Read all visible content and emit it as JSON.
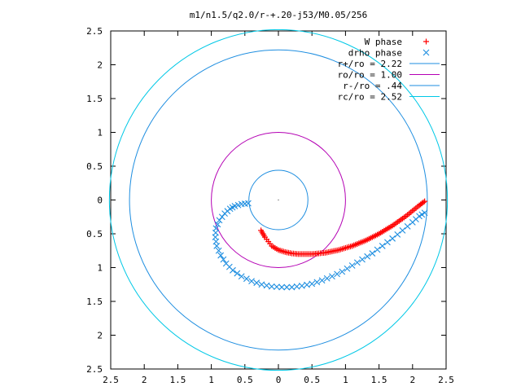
{
  "chart_data": {
    "type": "scatter",
    "title": "m1/n1.5/q2.0/r-+.20-j53/M0.05/256",
    "xlabel": "",
    "ylabel": "",
    "xlim": [
      -2.5,
      2.5
    ],
    "ylim": [
      -2.5,
      2.5
    ],
    "x_ticks": [
      "2.5",
      "2",
      "1.5",
      "1",
      "0.5",
      "0",
      "0.5",
      "1",
      "1.5",
      "2",
      "2.5"
    ],
    "y_ticks": [
      "2.5",
      "2",
      "1.5",
      "1",
      "0.5",
      "0",
      "0.5",
      "1",
      "1.5",
      "2",
      "2.5"
    ],
    "grid": false,
    "legend_position": "top-right",
    "series": [
      {
        "name": "W phase",
        "kind": "points",
        "marker": "plus",
        "color": "#ff0000",
        "points": [
          [
            -0.26,
            -0.45
          ],
          [
            -0.2,
            -0.55
          ],
          [
            -0.1,
            -0.68
          ],
          [
            0.0,
            -0.74
          ],
          [
            0.1,
            -0.77
          ],
          [
            0.2,
            -0.79
          ],
          [
            0.3,
            -0.8
          ],
          [
            0.4,
            -0.8
          ],
          [
            0.5,
            -0.8
          ],
          [
            0.6,
            -0.79
          ],
          [
            0.7,
            -0.78
          ],
          [
            0.8,
            -0.76
          ],
          [
            0.9,
            -0.74
          ],
          [
            1.0,
            -0.71
          ],
          [
            1.1,
            -0.68
          ],
          [
            1.2,
            -0.64
          ],
          [
            1.3,
            -0.6
          ],
          [
            1.4,
            -0.55
          ],
          [
            1.5,
            -0.5
          ],
          [
            1.6,
            -0.44
          ],
          [
            1.7,
            -0.38
          ],
          [
            1.8,
            -0.31
          ],
          [
            1.9,
            -0.24
          ],
          [
            2.0,
            -0.16
          ],
          [
            2.1,
            -0.08
          ],
          [
            2.18,
            -0.02
          ]
        ]
      },
      {
        "name": "drho phase",
        "kind": "points",
        "marker": "cross",
        "color": "#1e8ee0",
        "points": [
          [
            -0.45,
            -0.05
          ],
          [
            -0.55,
            -0.06
          ],
          [
            -0.65,
            -0.09
          ],
          [
            -0.72,
            -0.13
          ],
          [
            -0.8,
            -0.2
          ],
          [
            -0.88,
            -0.3
          ],
          [
            -0.93,
            -0.42
          ],
          [
            -0.94,
            -0.55
          ],
          [
            -0.92,
            -0.68
          ],
          [
            -0.86,
            -0.82
          ],
          [
            -0.78,
            -0.94
          ],
          [
            -0.68,
            -1.04
          ],
          [
            -0.55,
            -1.13
          ],
          [
            -0.4,
            -1.2
          ],
          [
            -0.25,
            -1.25
          ],
          [
            -0.1,
            -1.28
          ],
          [
            0.05,
            -1.29
          ],
          [
            0.2,
            -1.29
          ],
          [
            0.35,
            -1.27
          ],
          [
            0.5,
            -1.24
          ],
          [
            0.65,
            -1.19
          ],
          [
            0.8,
            -1.13
          ],
          [
            0.95,
            -1.06
          ],
          [
            1.1,
            -0.97
          ],
          [
            1.25,
            -0.88
          ],
          [
            1.4,
            -0.79
          ],
          [
            1.55,
            -0.68
          ],
          [
            1.7,
            -0.57
          ],
          [
            1.85,
            -0.45
          ],
          [
            2.0,
            -0.33
          ],
          [
            2.1,
            -0.24
          ],
          [
            2.18,
            -0.19
          ]
        ]
      },
      {
        "name": "r+/ro = 2.22",
        "kind": "circle",
        "radius": 2.22,
        "color": "#1e8ee0"
      },
      {
        "name": "ro/ro = 1.00",
        "kind": "circle",
        "radius": 1.0,
        "color": "#b400b4"
      },
      {
        "name": "r-/ro = .44",
        "kind": "circle",
        "radius": 0.44,
        "color": "#1e8ee0"
      },
      {
        "name": "rc/ro = 2.52",
        "kind": "circle",
        "radius": 2.52,
        "color": "#00c8e6"
      }
    ]
  }
}
